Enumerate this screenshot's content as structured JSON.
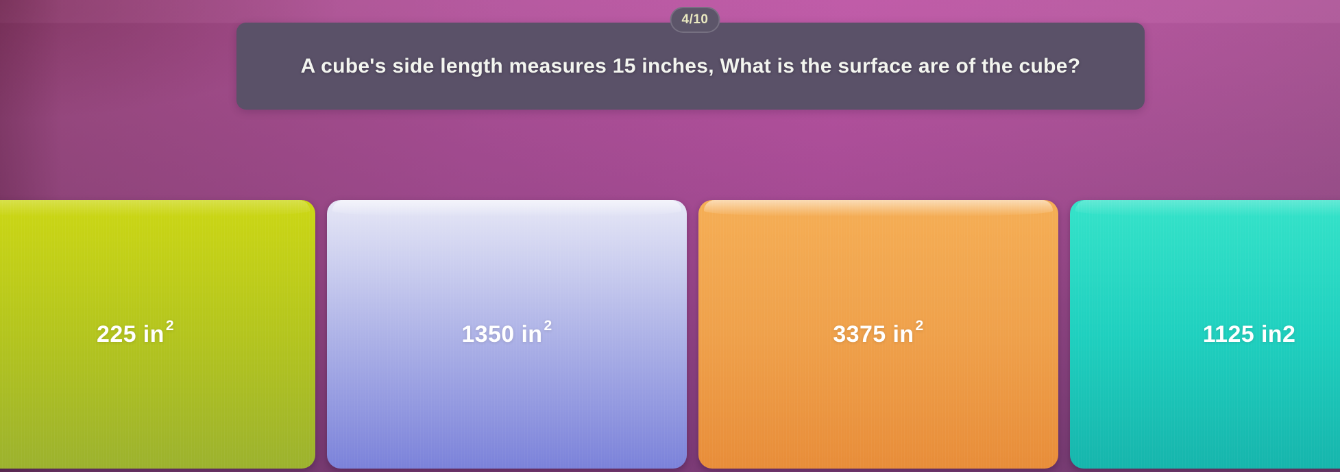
{
  "progress": "4/10",
  "question": "A cube's side length measures 15 inches, What is the surface are of the cube?",
  "answers": [
    {
      "text": "225 in",
      "sup": "2",
      "colors": [
        "#ccd714",
        "#b4c51e",
        "#9cb22e"
      ]
    },
    {
      "text": "1350 in",
      "sup": "2",
      "colors": [
        "#e6e7f6",
        "#aeb3e7",
        "#7b82da"
      ]
    },
    {
      "text": "3375 in",
      "sup": "2",
      "colors": [
        "#f5ae55",
        "#efa14b",
        "#e88d39"
      ]
    },
    {
      "text": "1125 in2",
      "sup": "",
      "colors": [
        "#35e3c9",
        "#1fd0bf",
        "#16b5ac"
      ]
    }
  ],
  "panel_color": "#5a5168",
  "background_color": "#a94f93"
}
